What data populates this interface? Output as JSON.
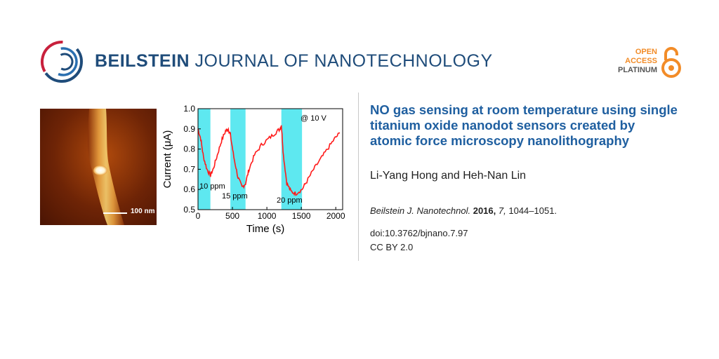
{
  "header": {
    "journal_bold": "BEILSTEIN",
    "journal_rest": " JOURNAL OF NANOTECHNOLOGY",
    "oa_line1": "OPEN",
    "oa_line2": "ACCESS",
    "oa_line3": "PLATINUM"
  },
  "afm": {
    "scale_label": "100 nm"
  },
  "article": {
    "title": "NO gas sensing at room temperature using single titanium oxide nanodot sensors cre­ated by atomic force microscopy nanoli­thography",
    "authors": "Li-Yang Hong and Heh-Nan Lin",
    "journal_abbrev": "Beilstein J. Nanotechnol.",
    "year": "2016,",
    "volume": "7,",
    "pages": "1044–1051.",
    "doi": "doi:10.3762/bjnano.7.97",
    "license": "CC BY 2.0"
  },
  "chart_data": {
    "type": "line",
    "xlabel": "Time (s)",
    "ylabel": "Current (μA)",
    "xlim": [
      0,
      2100
    ],
    "ylim": [
      0.5,
      1.0
    ],
    "xticks": [
      0,
      500,
      1000,
      1500,
      2000
    ],
    "yticks": [
      0.5,
      0.6,
      0.7,
      0.8,
      0.9,
      1.0
    ],
    "annotations": {
      "voltage": "@ 10 V",
      "pulse1": "10 ppm",
      "pulse2": "15 ppm",
      "pulse3": "20 ppm"
    },
    "exposures": [
      {
        "start": 0,
        "end": 180
      },
      {
        "start": 470,
        "end": 690
      },
      {
        "start": 1210,
        "end": 1510
      }
    ],
    "series": [
      {
        "color": "#ff1a1a",
        "x": [
          0,
          40,
          80,
          130,
          180,
          220,
          280,
          340,
          400,
          440,
          470,
          520,
          580,
          640,
          690,
          740,
          820,
          920,
          1020,
          1120,
          1190,
          1210,
          1240,
          1290,
          1350,
          1420,
          1510,
          1580,
          1680,
          1780,
          1880,
          1980,
          2060
        ],
        "y": [
          0.9,
          0.85,
          0.76,
          0.7,
          0.67,
          0.7,
          0.77,
          0.84,
          0.89,
          0.9,
          0.87,
          0.76,
          0.66,
          0.61,
          0.63,
          0.7,
          0.77,
          0.82,
          0.85,
          0.88,
          0.9,
          0.92,
          0.77,
          0.63,
          0.59,
          0.58,
          0.6,
          0.64,
          0.7,
          0.75,
          0.8,
          0.85,
          0.88
        ]
      }
    ]
  }
}
